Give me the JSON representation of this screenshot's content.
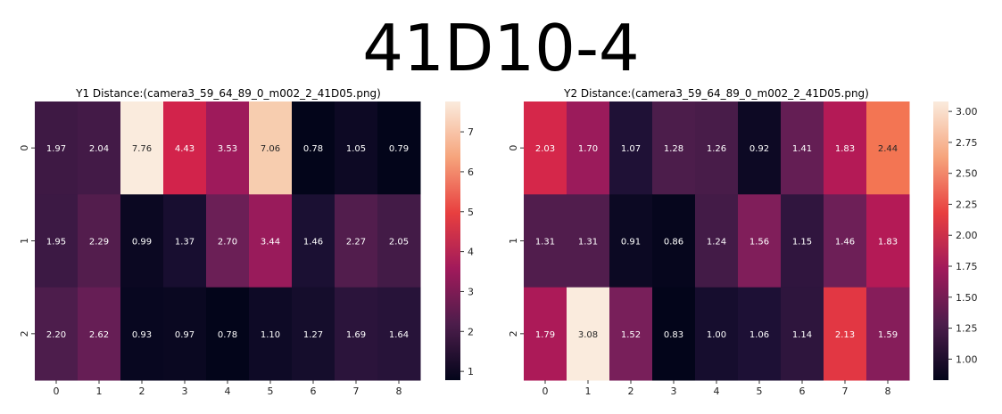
{
  "title": "41D10-4",
  "chart_data": [
    {
      "type": "heatmap",
      "title": "Y1 Distance:(camera3_59_64_89_0_m002_2_41D05.png)",
      "x_ticks": [
        "0",
        "1",
        "2",
        "3",
        "4",
        "5",
        "6",
        "7",
        "8"
      ],
      "y_ticks": [
        "0",
        "1",
        "2"
      ],
      "values": [
        [
          1.97,
          2.04,
          7.76,
          4.43,
          3.53,
          7.06,
          0.78,
          1.05,
          0.79
        ],
        [
          1.95,
          2.29,
          0.99,
          1.37,
          2.7,
          3.44,
          1.46,
          2.27,
          2.05
        ],
        [
          2.2,
          2.62,
          0.93,
          0.97,
          0.78,
          1.1,
          1.27,
          1.69,
          1.64
        ]
      ],
      "labels": [
        [
          "1.97",
          "2.04",
          "7.76",
          "4.43",
          "3.53",
          "7.06",
          "0.78",
          "1.05",
          "0.79"
        ],
        [
          "1.95",
          "2.29",
          "0.99",
          "1.37",
          "2.70",
          "3.44",
          "1.46",
          "2.27",
          "2.05"
        ],
        [
          "2.20",
          "2.62",
          "0.93",
          "0.97",
          "0.78",
          "1.10",
          "1.27",
          "1.69",
          "1.64"
        ]
      ],
      "colorbar": {
        "min": 0.78,
        "max": 7.76,
        "ticks": [
          "1",
          "2",
          "3",
          "4",
          "5",
          "6",
          "7"
        ],
        "tick_values": [
          1,
          2,
          3,
          4,
          5,
          6,
          7
        ]
      },
      "colormap": "rocket"
    },
    {
      "type": "heatmap",
      "title": "Y2 Distance:(camera3_59_64_89_0_m002_2_41D05.png)",
      "x_ticks": [
        "0",
        "1",
        "2",
        "3",
        "4",
        "5",
        "6",
        "7",
        "8"
      ],
      "y_ticks": [
        "0",
        "1",
        "2"
      ],
      "values": [
        [
          2.03,
          1.7,
          1.07,
          1.28,
          1.26,
          0.92,
          1.41,
          1.83,
          2.44
        ],
        [
          1.31,
          1.31,
          0.91,
          0.86,
          1.24,
          1.56,
          1.15,
          1.46,
          1.83
        ],
        [
          1.79,
          3.08,
          1.52,
          0.83,
          1.0,
          1.06,
          1.14,
          2.13,
          1.59
        ]
      ],
      "labels": [
        [
          "2.03",
          "1.70",
          "1.07",
          "1.28",
          "1.26",
          "0.92",
          "1.41",
          "1.83",
          "2.44"
        ],
        [
          "1.31",
          "1.31",
          "0.91",
          "0.86",
          "1.24",
          "1.56",
          "1.15",
          "1.46",
          "1.83"
        ],
        [
          "1.79",
          "3.08",
          "1.52",
          "0.83",
          "1.00",
          "1.06",
          "1.14",
          "2.13",
          "1.59"
        ]
      ],
      "colorbar": {
        "min": 0.83,
        "max": 3.08,
        "ticks": [
          "1.00",
          "1.25",
          "1.50",
          "1.75",
          "2.00",
          "2.25",
          "2.50",
          "2.75",
          "3.00"
        ],
        "tick_values": [
          1.0,
          1.25,
          1.5,
          1.75,
          2.0,
          2.25,
          2.5,
          2.75,
          3.0
        ]
      },
      "colormap": "rocket"
    }
  ]
}
